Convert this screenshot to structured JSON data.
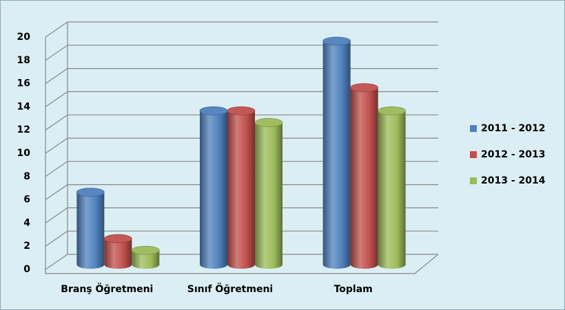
{
  "chart_data": {
    "type": "bar3d",
    "categories": [
      "Branş Öğretmeni",
      "Sınıf Öğretmeni",
      "Toplam"
    ],
    "series": [
      {
        "name": "2011 - 2012",
        "color": "#4f81bd",
        "values": [
          6,
          13,
          19
        ]
      },
      {
        "name": "2012 - 2013",
        "color": "#c0504d",
        "values": [
          2,
          13,
          15
        ]
      },
      {
        "name": "2013 - 2014",
        "color": "#9bbb59",
        "values": [
          1,
          12,
          13
        ]
      }
    ],
    "ylim": [
      0,
      20
    ],
    "yticks": [
      0,
      2,
      4,
      6,
      8,
      10,
      12,
      14,
      16,
      18,
      20
    ],
    "grid": true,
    "legend": "right"
  }
}
